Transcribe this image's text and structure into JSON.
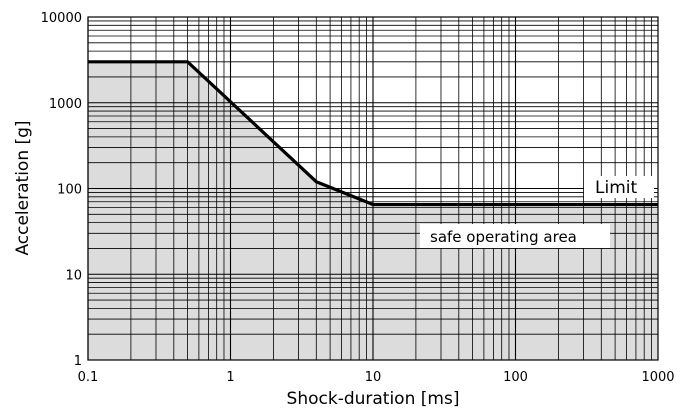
{
  "chart_data": {
    "type": "line",
    "title": "",
    "xlabel": "Shock-duration [ms]",
    "ylabel": "Acceleration [g]",
    "xscale": "log",
    "yscale": "log",
    "xlim": [
      0.1,
      1000
    ],
    "ylim": [
      1,
      10000
    ],
    "grid": "on",
    "x_ticks": [
      "0.1",
      "1",
      "10",
      "100",
      "1000"
    ],
    "y_ticks": [
      "1",
      "10",
      "100",
      "1000",
      "10000"
    ],
    "series": [
      {
        "name": "",
        "x": [
          0.1,
          0.5,
          4,
          10,
          1000
        ],
        "y": [
          3000,
          3000,
          120,
          65,
          65
        ]
      }
    ],
    "annotations": {
      "limit_label": "Limit",
      "area_label": "safe operating area"
    },
    "colors": {
      "line": "#000000",
      "area_fill": "#dcdcdc",
      "grid": "#000000"
    }
  }
}
